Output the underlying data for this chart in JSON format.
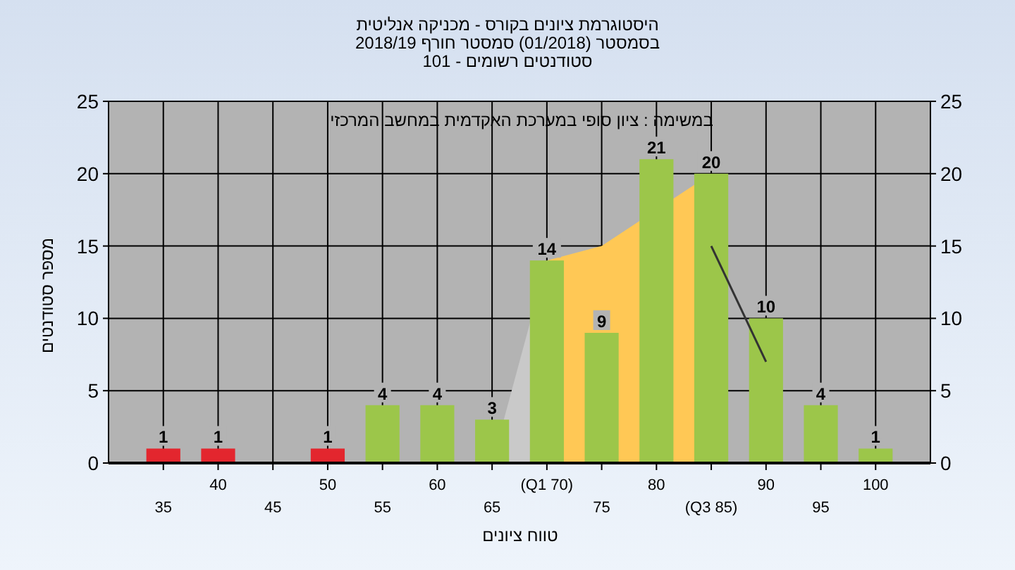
{
  "chart_data": {
    "type": "bar",
    "title": "היסטוגרמת ציונים בקורס - מכניקה אנליטית",
    "subtitle": "בסמסטר (01/2018) סמסטר חורף 2018/19\nסטודנטים רשומים - 101",
    "annotations": [
      "במשימה : ציון סופי במערכת האקדמית במחשב המרכזי"
    ],
    "xlabel": "טווח ציונים",
    "ylabel": "מספר סטודנטים",
    "categories": [
      "35",
      "40",
      "45",
      "50",
      "55",
      "60",
      "65",
      "(Q1 70)",
      "75",
      "80",
      "(Q3 85)",
      "90",
      "95",
      "100"
    ],
    "series": [
      {
        "type": "area",
        "color": "#c9c9c9",
        "values": [
          null,
          null,
          null,
          null,
          null,
          null,
          0,
          14,
          null,
          null,
          null,
          null,
          null,
          null
        ]
      },
      {
        "type": "area",
        "color": "#ffc855",
        "values": [
          null,
          null,
          null,
          null,
          null,
          null,
          null,
          14,
          15,
          null,
          20,
          null,
          null,
          null
        ]
      },
      {
        "colors": [
          "#e3262e",
          "#e3262e",
          "#e3262e",
          "#e3262e",
          "#9cc64a",
          "#9cc64a",
          "#9cc64a",
          "#9cc64a",
          "#9cc64a",
          "#9cc64a",
          "#9cc64a",
          "#9cc64a",
          "#9cc64a",
          "#9cc64a"
        ],
        "values": [
          1,
          1,
          0,
          1,
          4,
          4,
          3,
          14,
          9,
          21,
          20,
          10,
          4,
          1
        ],
        "value_labels": [
          "1",
          "1",
          null,
          "1",
          "4",
          "4",
          "3",
          "14",
          "9",
          "21",
          "20",
          "10",
          "4",
          "1"
        ]
      },
      {
        "type": "line",
        "color": "#333333",
        "values": [
          null,
          null,
          null,
          null,
          null,
          null,
          null,
          null,
          null,
          null,
          15,
          7,
          null,
          null
        ]
      }
    ],
    "ylim": [
      0,
      25
    ],
    "yticks": [
      0,
      5,
      10,
      15,
      20,
      25
    ],
    "y2lim": [
      0,
      25
    ],
    "y2ticks": [
      0,
      5,
      10,
      15,
      20,
      25
    ],
    "grid": true
  }
}
